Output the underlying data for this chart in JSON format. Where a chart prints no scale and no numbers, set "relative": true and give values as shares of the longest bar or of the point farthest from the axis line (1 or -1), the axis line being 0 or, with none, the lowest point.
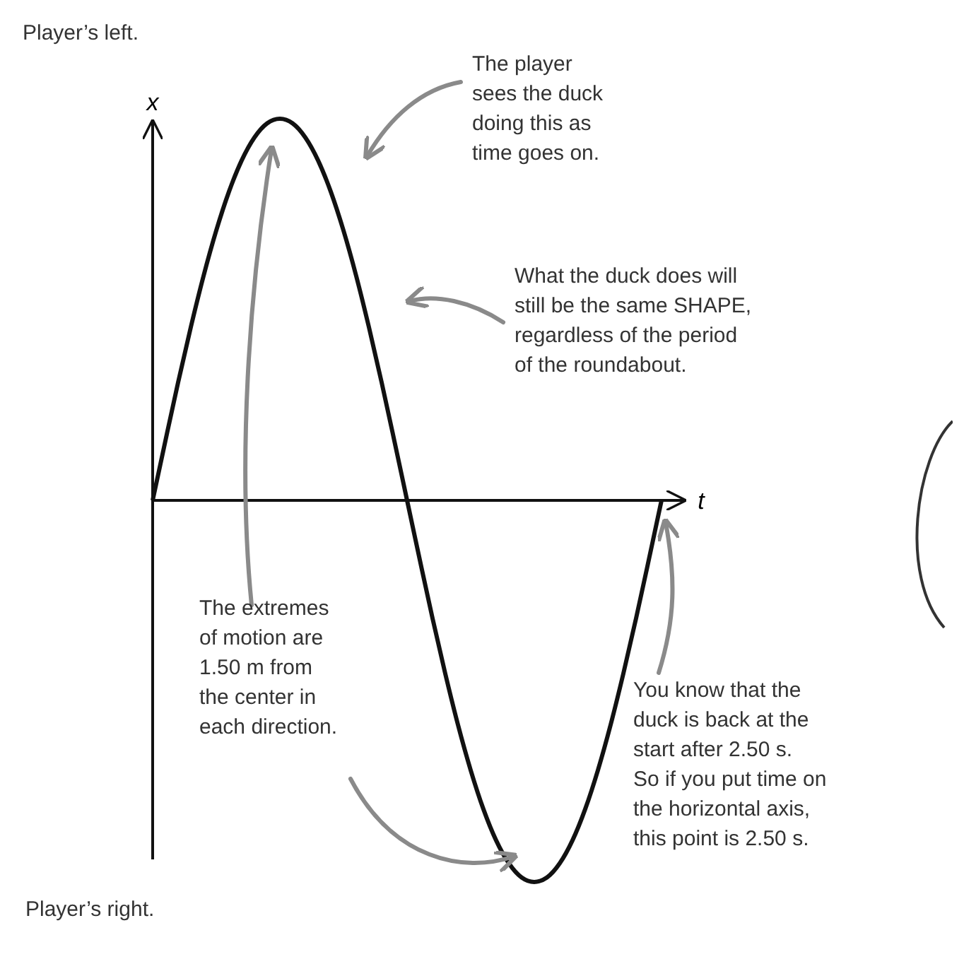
{
  "chart_data": {
    "type": "line",
    "relative": true,
    "xlabel": "t",
    "ylabel": "x",
    "color": "#111111",
    "categories": [
      null,
      null,
      null,
      null,
      null,
      null,
      null,
      null,
      null,
      null,
      null,
      null,
      null,
      null,
      null,
      null,
      null,
      null,
      null,
      null,
      null,
      null,
      null,
      null,
      null,
      null,
      null,
      null,
      null,
      null,
      null,
      null,
      null,
      null,
      null,
      null,
      null,
      null,
      null,
      null,
      null
    ],
    "values": [
      0,
      0.156,
      0.309,
      0.454,
      0.588,
      0.707,
      0.809,
      0.891,
      0.951,
      0.988,
      1,
      0.988,
      0.951,
      0.891,
      0.809,
      0.707,
      0.588,
      0.454,
      0.309,
      0.156,
      0,
      -0.156,
      -0.309,
      -0.454,
      -0.588,
      -0.707,
      -0.809,
      -0.891,
      -0.951,
      -0.988,
      -1,
      -0.988,
      -0.951,
      -0.891,
      -0.809,
      -0.707,
      -0.588,
      -0.454,
      -0.309,
      -0.156,
      0
    ],
    "annotations": [
      "Player’s left.",
      "The player\nsees the duck\ndoing this as\ntime goes on.",
      "What the duck does will\nstill be the same SHAPE,\nregardless of the period\nof the roundabout.",
      "The extremes\nof motion are\n1.50 m from\nthe center in\neach direction.",
      "You know that the\nduck is back at the\nstart after 2.50 s.\nSo if you put time on\nthe horizontal axis,\nthis point is 2.50 s.",
      "Player’s right."
    ]
  }
}
